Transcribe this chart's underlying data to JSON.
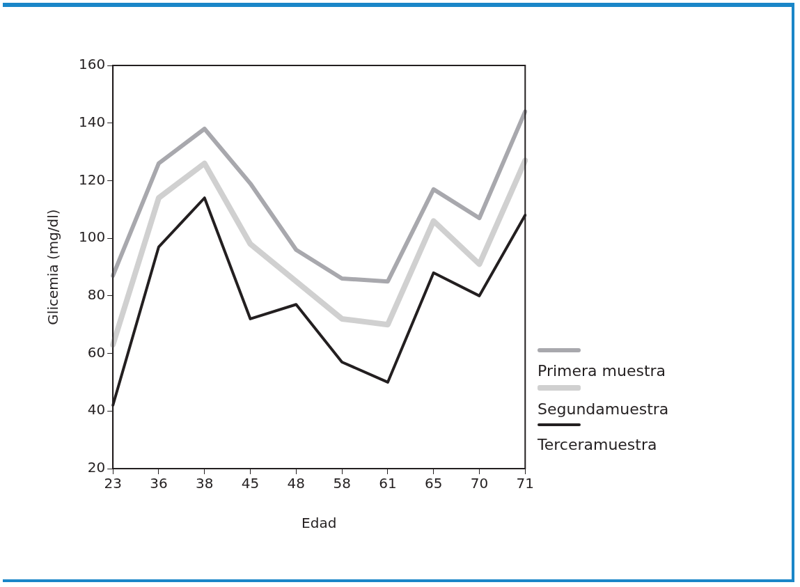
{
  "chart_data": {
    "type": "line",
    "xlabel": "Edad",
    "ylabel": "Glicemia (mg/dl)",
    "categories": [
      "23",
      "36",
      "38",
      "45",
      "48",
      "58",
      "61",
      "65",
      "70",
      "71"
    ],
    "ylim": [
      20,
      160
    ],
    "yticks": [
      20,
      40,
      60,
      80,
      100,
      120,
      140,
      160
    ],
    "grid": false,
    "legend": "right",
    "marker": "none",
    "line_style": "solid",
    "series": [
      {
        "name": "Primera muestra",
        "color": "#a8a8ad",
        "values": [
          87,
          126,
          138,
          119,
          96,
          86,
          85,
          117,
          107,
          144
        ]
      },
      {
        "name": "Segundamuestra",
        "color": "#d0d0d0",
        "values": [
          63,
          114,
          126,
          98,
          85,
          72,
          70,
          106,
          91,
          127
        ]
      },
      {
        "name": "Terceramuestra",
        "color": "#231f20",
        "values": [
          42,
          97,
          114,
          72,
          77,
          57,
          50,
          88,
          80,
          108
        ]
      }
    ]
  }
}
